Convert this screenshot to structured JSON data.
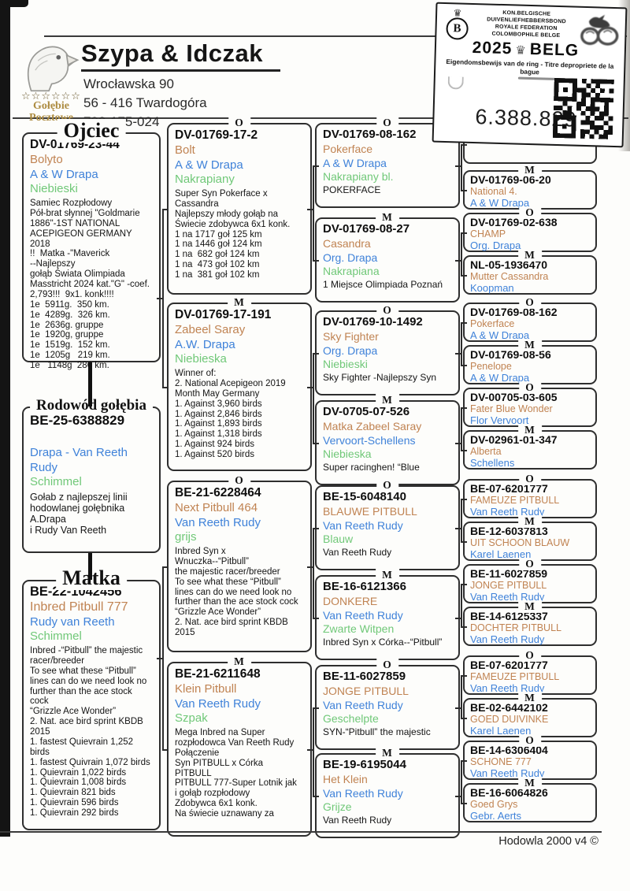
{
  "header": {
    "kennel_name": "Szypa & Idczak",
    "address_line1": "Wrocławska 90",
    "address_line2": "56 - 416  Twardogóra",
    "phone": "792-175-024",
    "logo_stars": "☆☆☆☆☆☆",
    "logo_caption_line1": "Gołębie",
    "logo_caption_line2": "Pocztowe"
  },
  "ring_stamp": {
    "federation_line1": "KON.BELGISCHE DUIVENLIEFHEBBERSBOND",
    "federation_line2": "ROYALE FEDERATION COLOMBOPHILE BELGE",
    "year": "2025",
    "country": "BELG",
    "logo_letter": "B",
    "ownership_line": "Eigendomsbewijs van de ring - Titre depropriete de la bague",
    "ring_number": "6.388.829"
  },
  "pedigree": {
    "father_title": "Ojciec",
    "subject_title": "Rodowód gołębia",
    "mother_title": "Matka",
    "colors": {
      "name": "#c08352",
      "breeder": "#3f82d9",
      "plumage": "#70c878"
    },
    "father": {
      "ring": "DV-01769-23-44",
      "name": "Bolyto",
      "breeder": "A & W Drapa",
      "plumage": "Niebieski",
      "desc": "Samiec Rozpłodowy\nPół-brat słynnej \"Goldmarie\n1886\"-1ST NATIONAL\nACEPIGEON GERMANY 2018\n!!  Matka -\"Maverick\n--Najlepszy\ngołąb Świata Olimpiada\nMasstricht 2024 kat.\"G\" -coef.\n2,793!!!  9x1. konk!!!!\n1e  5911g.  350 km.\n1e  4289g.  326 km.\n1e  2636g. gruppe\n1e  1920g, gruppe\n1e  1519g.  152 km.\n1e  1205g   219 km.\n1e   1148g  286 km."
    },
    "subject": {
      "ring": "BE-25-6388829",
      "name": "",
      "breeder": "Drapa - Van Reeth Rudy",
      "plumage": "Schimmel",
      "desc": "Gołab z najlepszej linii\nhodowlanej gołębnika A.Drapa\ni Rudy Van Reeth"
    },
    "mother": {
      "ring": "BE-22-1042456",
      "name": "Inbred Pitbull 777",
      "breeder": "Rudy van Reeth",
      "plumage": "Schimmel",
      "desc": "Inbred -“Pitbull” the majestic\nracer/breeder\nTo see what these “Pitbull”\nlines can do we need look no\nfurther than the ace stock cock\n“Grizzle Ace Wonder”\n2. Nat. ace bird sprint KBDB\n2015\n1. fastest Quievrain 1,252\nbirds\n1. fastest Quivrain 1,072 birds\n1. Quievrain 1,022 birds\n1. Quievrain 1,008 birds\n1. Quievrain 821 bids\n1. Quievrain 596 birds\n1. Quievrain 292 birds"
    },
    "gen2": [
      {
        "sex": "O",
        "ring": "DV-01769-17-2",
        "name": "Bolt",
        "breeder": "A & W Drapa",
        "plumage": "Nakrapiany",
        "desc": "Super Syn Pokerface x\nCassandra\nNajlepszy młody gołąb na\nŚwiecie zdobywca 6x1 konk.\n1 na 1717 goł 125 km\n1 na 1446 goł 124 km\n1 na  682 goł 124 km\n1 na  473 goł 102 km\n1 na  381 goł 102 km"
      },
      {
        "sex": "M",
        "ring": "DV-01769-17-191",
        "name": "Zabeel Saray",
        "breeder": "A.W. Drapa",
        "plumage": "Niebieska",
        "desc": "Winner of:\n2. National Acepigeon 2019\nMonth May Germany\n1. Against 3,960 birds\n1. Against 2,846 birds\n1. Against 1,893 birds\n1. Against 1,318 birds\n1. Against 924 birds\n1. Against 520 birds"
      },
      {
        "sex": "O",
        "ring": "BE-21-6228464",
        "name": "Next Pitbull 464",
        "breeder": "Van Reeth Rudy",
        "plumage": "grijs",
        "desc": "Inbred Syn x\nWnuczka--“Pitbull”\nthe majestic racer/breeder\nTo see what these “Pitbull”\nlines can do we need look no\nfurther than the ace stock cock\n“Grizzle Ace Wonder”\n2. Nat. ace bird sprint KBDB\n2015"
      },
      {
        "sex": "M",
        "ring": "BE-21-6211648",
        "name": "Klein Pitbull",
        "breeder": "Van Reeth Rudy",
        "plumage": "Szpak",
        "desc": "Mega Inbred na Super\nrozpłodowca Van Reeth Rudy\nPołączenie\nSyn PITBULL x Córka\nPITBULL\nPITBULL 777-Super Lotnik jak\ni gołąb rozpłodowy\nZdobywca 6x1 konk.\nNa świecie uznawany za"
      }
    ],
    "gen3": [
      {
        "sex": "O",
        "ring": "DV-01769-08-162",
        "name": "Pokerface",
        "breeder": "A & W Drapa",
        "plumage": "Nakrapiany bl.",
        "desc": "POKERFACE"
      },
      {
        "sex": "M",
        "ring": "DV-01769-08-27",
        "name": "Casandra",
        "breeder": "Org. Drapa",
        "plumage": "Nakrapiana",
        "desc": "1 Miejsce Olimpiada Poznań"
      },
      {
        "sex": "O",
        "ring": "DV-01769-10-1492",
        "name": "Sky Fighter",
        "breeder": "Org. Drapa",
        "plumage": "Niebieski",
        "desc": "Sky Fighter -Najlepszy Syn"
      },
      {
        "sex": "M",
        "ring": "DV-0705-07-526",
        "name": "Matka Zabeel Saray",
        "breeder": "Vervoort-Schellens",
        "plumage": "Niebieska",
        "desc": "Super racinghen! “Blue"
      },
      {
        "sex": "O",
        "ring": "BE-15-6048140",
        "name": "BLAUWE PITBULL",
        "breeder": "Van Reeth Rudy",
        "plumage": "Blauw",
        "desc": "Van Reeth Rudy"
      },
      {
        "sex": "M",
        "ring": "BE-16-6121366",
        "name": "DONKERE",
        "breeder": "Van Reeth Rudy",
        "plumage": "Zwarte Witpen",
        "desc": "Inbred Syn x Córka--“Pitbull”"
      },
      {
        "sex": "O",
        "ring": "BE-11-6027859",
        "name": "JONGE PITBULL",
        "breeder": "Van Reeth Rudy",
        "plumage": "Geschelpte",
        "desc": "SYN-“Pitbull” the majestic"
      },
      {
        "sex": "M",
        "ring": "BE-19-6195044",
        "name": "Het Klein",
        "breeder": "Van Reeth Rudy",
        "plumage": "Grijze",
        "desc": "Van Reeth Rudy"
      }
    ],
    "gen4": [
      {
        "sex": "O",
        "ring": "",
        "name": "",
        "breeder": "Org. Drapa"
      },
      {
        "sex": "M",
        "ring": "DV-01769-06-20",
        "name": "National 4.",
        "breeder": "A & W Drapa"
      },
      {
        "sex": "O",
        "ring": "DV-01769-02-638",
        "name": "CHAMP",
        "breeder": "Org. Drapa"
      },
      {
        "sex": "M",
        "ring": "NL-05-1936470",
        "name": "Mutter Cassandra",
        "breeder": "Koopman"
      },
      {
        "sex": "O",
        "ring": "DV-01769-08-162",
        "name": "Pokerface",
        "breeder": "A & W Drapa"
      },
      {
        "sex": "M",
        "ring": "DV-01769-08-56",
        "name": "Penelope",
        "breeder": "A & W Drapa"
      },
      {
        "sex": "O",
        "ring": "DV-00705-03-605",
        "name": "Fater Blue Wonder",
        "breeder": "Flor Vervoort"
      },
      {
        "sex": "M",
        "ring": "DV-02961-01-347",
        "name": "Alberta",
        "breeder": "Schellens"
      },
      {
        "sex": "O",
        "ring": "BE-07-6201777",
        "name": "FAMEUZE PITBULL",
        "breeder": "Van Reeth Rudy"
      },
      {
        "sex": "M",
        "ring": "BE-12-6037813",
        "name": "UIT SCHOON BLAUW",
        "breeder": "Karel Laenen"
      },
      {
        "sex": "O",
        "ring": "BE-11-6027859",
        "name": "JONGE PITBULL",
        "breeder": "Van Reeth Rudy"
      },
      {
        "sex": "M",
        "ring": "BE-14-6125337",
        "name": "DOCHTER PITBULL",
        "breeder": "Van Reeth Rudy"
      },
      {
        "sex": "O",
        "ring": "BE-07-6201777",
        "name": "FAMEUZE PITBULL",
        "breeder": "Van Reeth Rudy"
      },
      {
        "sex": "M",
        "ring": "BE-02-6442102",
        "name": "GOED DUIVINKE",
        "breeder": "Karel Laenen"
      },
      {
        "sex": "O",
        "ring": "BE-14-6306404",
        "name": "SCHONE 777",
        "breeder": "Van Reeth Rudy"
      },
      {
        "sex": "M",
        "ring": "BE-16-6064826",
        "name": "Goed Grys",
        "breeder": "Gebr. Aerts"
      }
    ]
  },
  "footer": {
    "software": "Hodowla 2000 v4 ©"
  }
}
